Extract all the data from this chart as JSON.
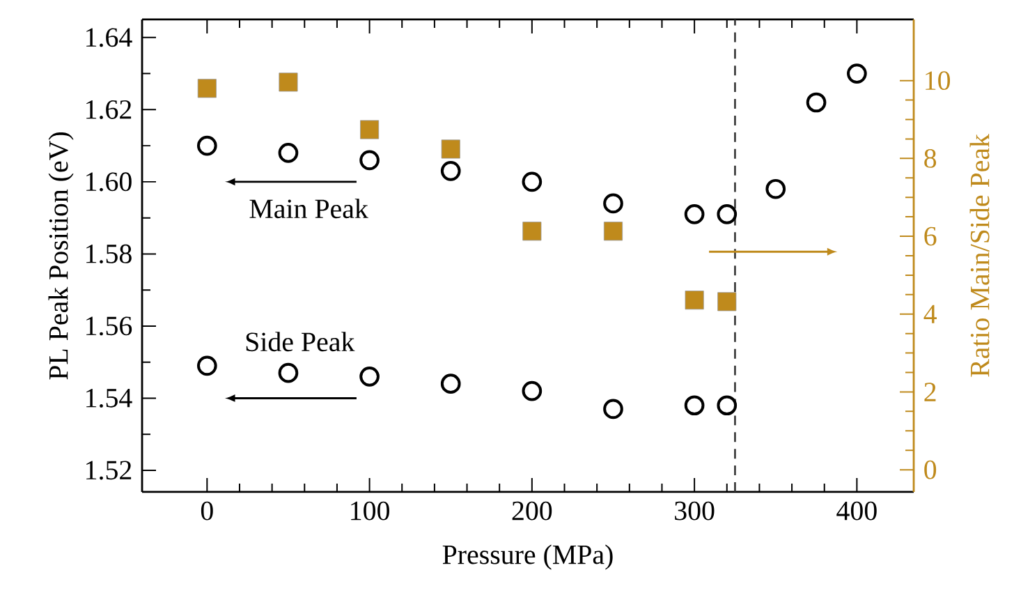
{
  "chart_data": {
    "type": "scatter",
    "xlabel": "Pressure (MPa)",
    "ylabel": "PL Peak Position (eV)",
    "y2label": "Ratio Main/Side Peak",
    "xlim": [
      -40,
      435
    ],
    "xticks": [
      0,
      100,
      200,
      300,
      400
    ],
    "ylim": [
      1.514,
      1.645
    ],
    "yticks": [
      {
        "value": 1.52,
        "label": "1.52"
      },
      {
        "value": 1.54,
        "label": "1.54"
      },
      {
        "value": 1.56,
        "label": "1.56"
      },
      {
        "value": 1.58,
        "label": "1.58"
      },
      {
        "value": 1.6,
        "label": "1.60"
      },
      {
        "value": 1.62,
        "label": "1.62"
      },
      {
        "value": 1.64,
        "label": "1.64"
      }
    ],
    "y2lim": [
      -0.57,
      11.57
    ],
    "y2ticks": [
      0,
      2,
      4,
      6,
      8,
      10
    ],
    "series": [
      {
        "color": "#000000",
        "marker": "circle",
        "x": [
          0,
          50,
          100,
          150,
          200,
          250,
          300,
          320,
          350,
          375,
          400
        ],
        "values": [
          1.61,
          1.608,
          1.606,
          1.603,
          1.6,
          1.594,
          1.591,
          1.591,
          1.598,
          1.622,
          1.63
        ]
      },
      {
        "color": "#000000",
        "marker": "circle",
        "x": [
          0,
          50,
          100,
          150,
          200,
          250,
          300,
          320
        ],
        "values": [
          1.549,
          1.547,
          1.546,
          1.544,
          1.542,
          1.537,
          1.538,
          1.538
        ]
      },
      {
        "color": "#bf8a1c",
        "marker": "square",
        "axis": "y2",
        "x": [
          0,
          50,
          100,
          150,
          200,
          250,
          300,
          320
        ],
        "values": [
          9.8,
          9.96,
          8.74,
          8.24,
          6.13,
          6.13,
          4.36,
          4.32
        ]
      }
    ],
    "ref_lines": [
      {
        "axis": "x",
        "value": 325,
        "line_style": "dashed",
        "color": "#333333"
      }
    ],
    "annotations": [
      "Main Peak",
      "Side Peak"
    ]
  }
}
